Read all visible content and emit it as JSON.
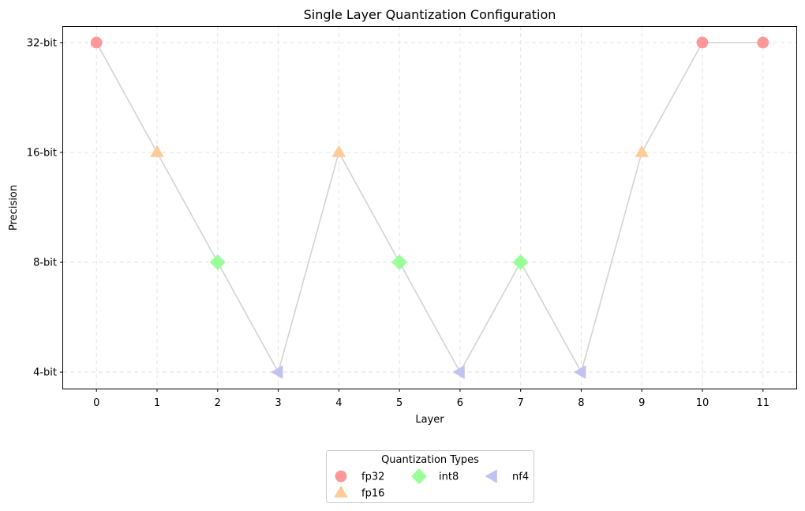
{
  "chart_data": {
    "type": "line",
    "title": "Single Layer Quantization Configuration",
    "xlabel": "Layer",
    "ylabel": "Precision",
    "x": [
      0,
      1,
      2,
      3,
      4,
      5,
      6,
      7,
      8,
      9,
      10,
      11
    ],
    "layer_types": [
      "fp32",
      "fp16",
      "int8",
      "nf4",
      "fp16",
      "int8",
      "nf4",
      "int8",
      "nf4",
      "fp16",
      "fp32",
      "fp32"
    ],
    "y_levels": [
      {
        "label": "4-bit",
        "value": 4
      },
      {
        "label": "8-bit",
        "value": 8
      },
      {
        "label": "16-bit",
        "value": 16
      },
      {
        "label": "32-bit",
        "value": 32
      }
    ],
    "y_scale": "log2",
    "xlim": [
      -0.55,
      11.55
    ],
    "grid": true,
    "line_color": "#d3d3d3",
    "series": [
      {
        "name": "fp32",
        "bits": 32,
        "marker": "circle",
        "color": "#ff9999"
      },
      {
        "name": "fp16",
        "bits": 16,
        "marker": "triangle-up",
        "color": "#ffcc99"
      },
      {
        "name": "int8",
        "bits": 8,
        "marker": "diamond",
        "color": "#99ff99"
      },
      {
        "name": "nf4",
        "bits": 4,
        "marker": "triangle-left",
        "color": "#c2c2f0"
      }
    ],
    "legend": {
      "title": "Quantization Types",
      "position": "bottom-center"
    }
  }
}
